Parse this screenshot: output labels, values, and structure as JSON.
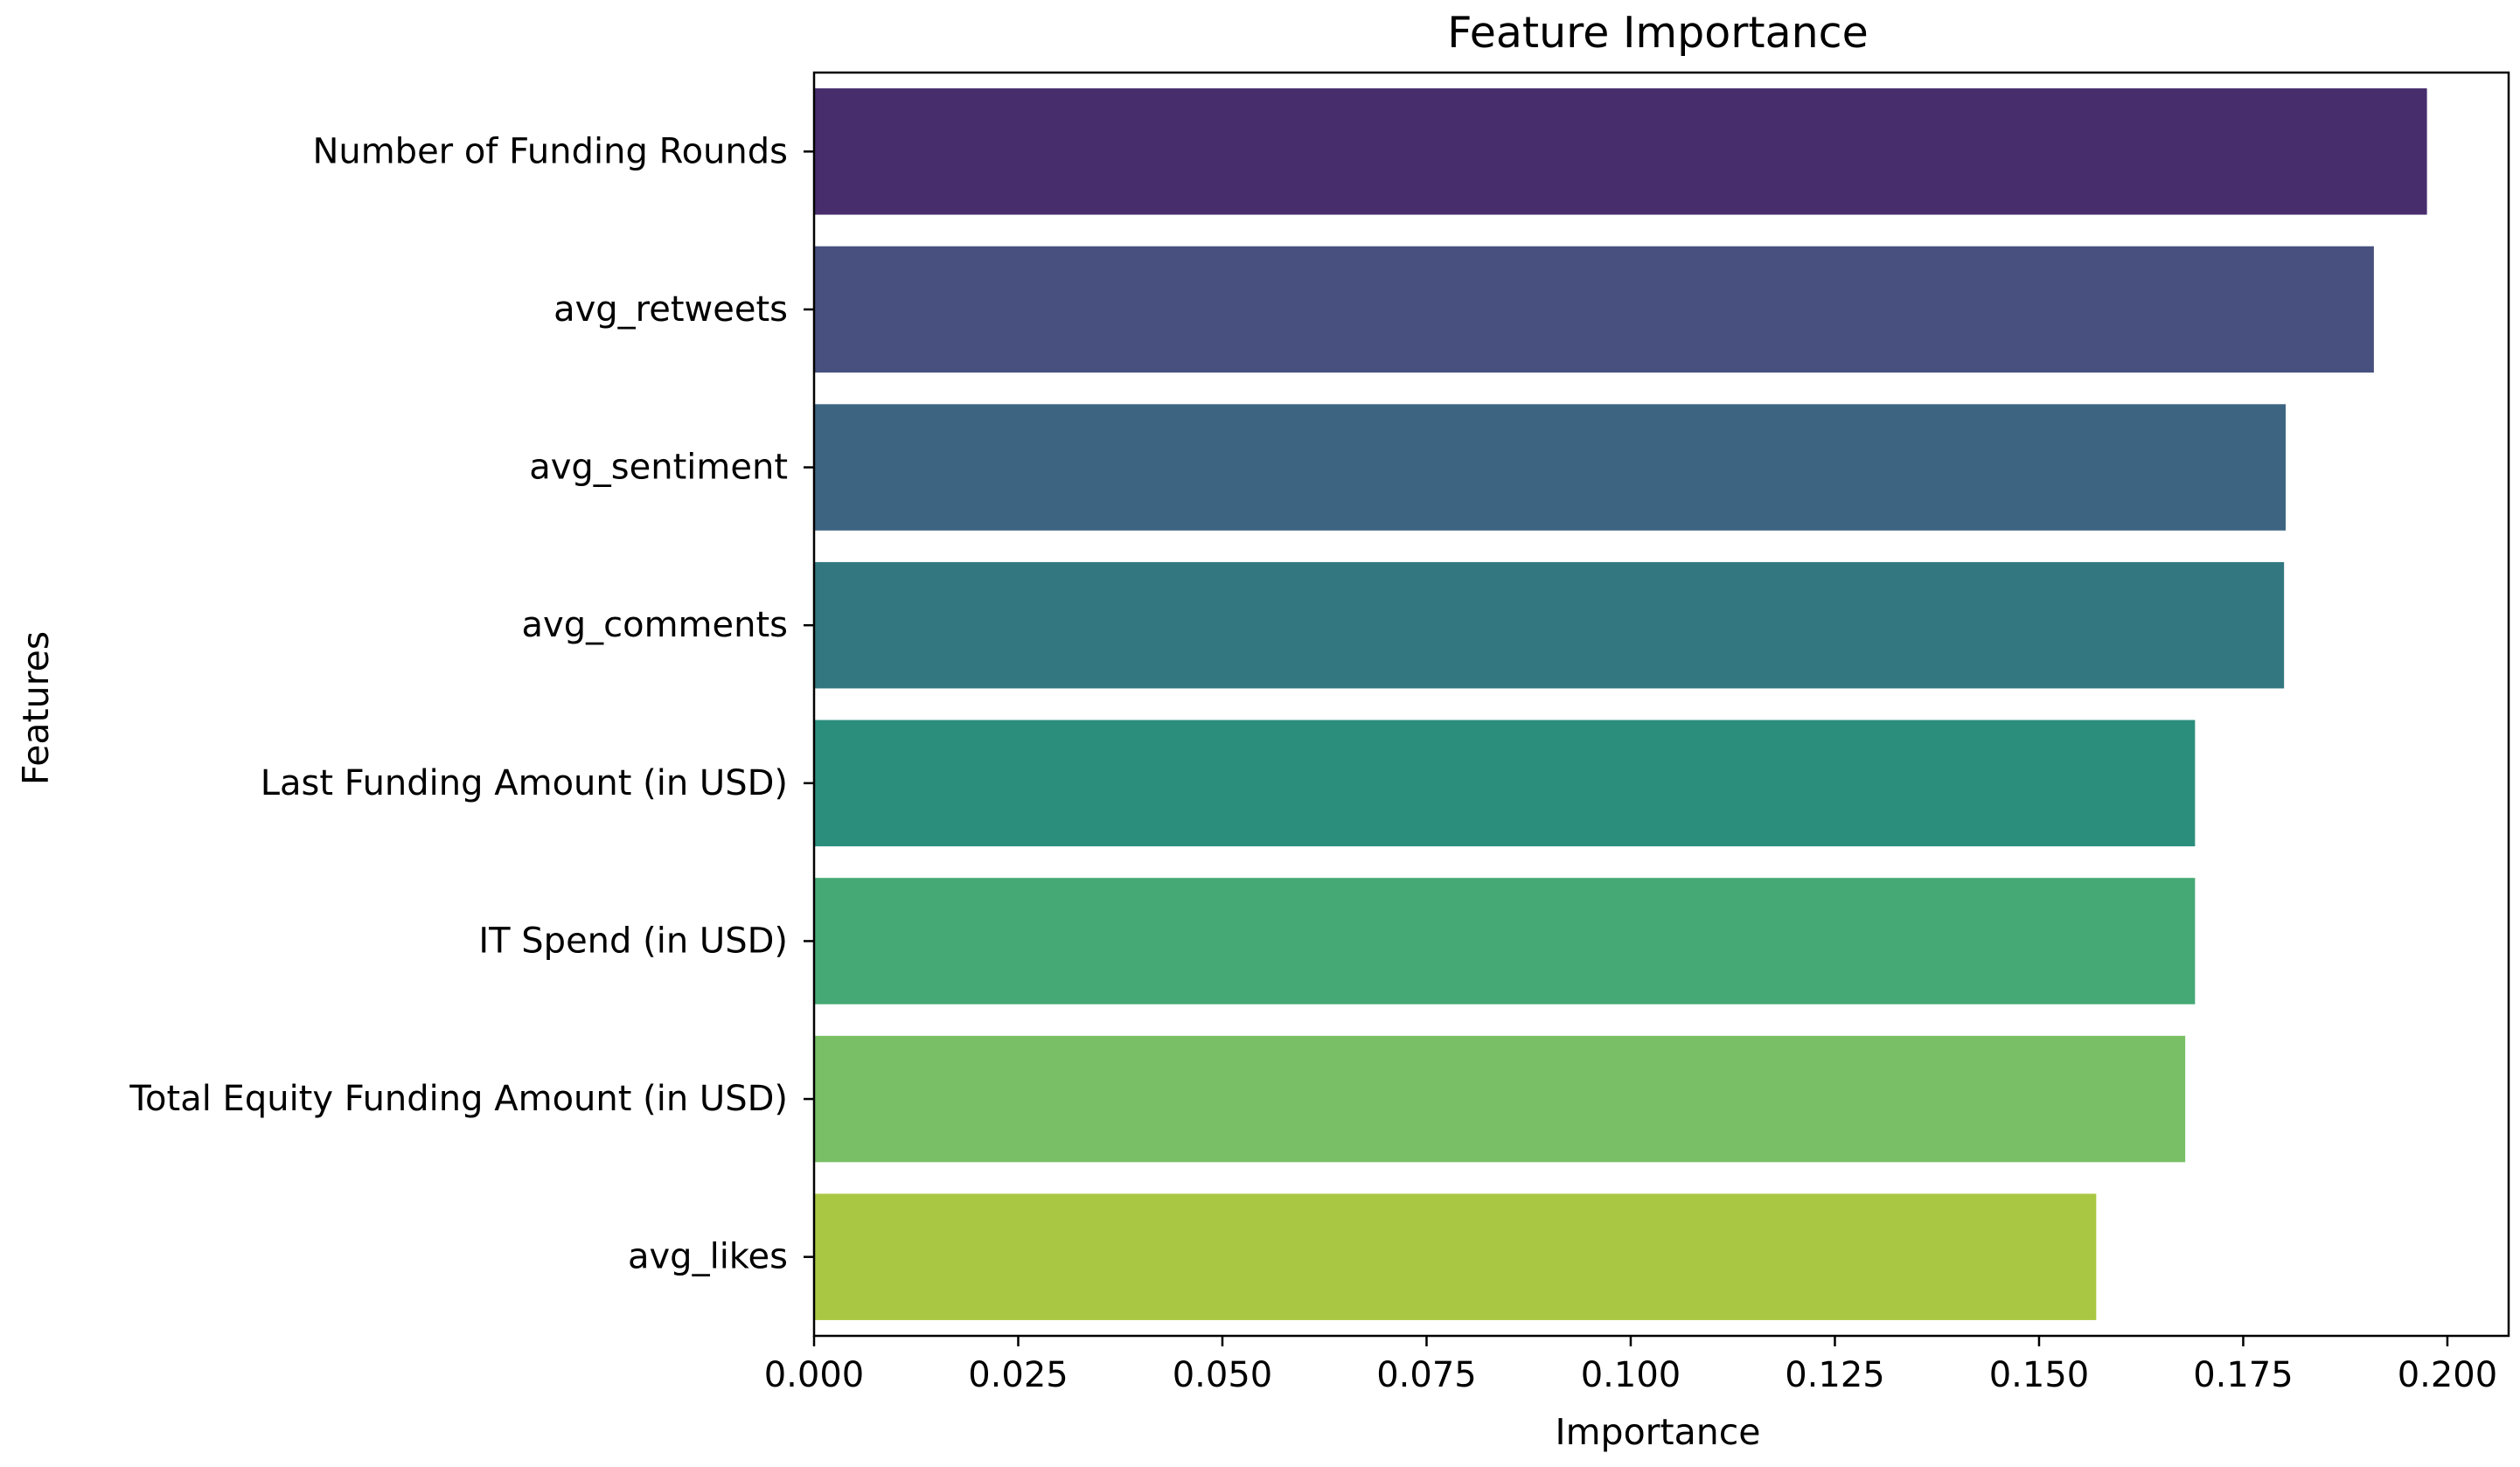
{
  "chart_data": {
    "type": "bar",
    "orientation": "horizontal",
    "title": "Feature Importance",
    "xlabel": "Importance",
    "ylabel": "Features",
    "xlim": [
      0,
      0.2075
    ],
    "xticks": [
      "0.000",
      "0.025",
      "0.050",
      "0.075",
      "0.100",
      "0.125",
      "0.150",
      "0.175",
      "0.200"
    ],
    "grid": false,
    "categories": [
      "Number of Funding Rounds",
      "avg_retweets",
      "avg_sentiment",
      "avg_comments",
      "Last Funding Amount (in USD)",
      "IT Spend (in USD)",
      "Total Equity Funding Amount (in USD)",
      "avg_likes"
    ],
    "values": [
      0.1975,
      0.191,
      0.1802,
      0.18,
      0.1691,
      0.1691,
      0.1679,
      0.157
    ],
    "colors": [
      "#482d6d",
      "#47507e",
      "#3d6582",
      "#337881",
      "#2b8e7d",
      "#45a975",
      "#78bf65",
      "#a9c742"
    ]
  }
}
